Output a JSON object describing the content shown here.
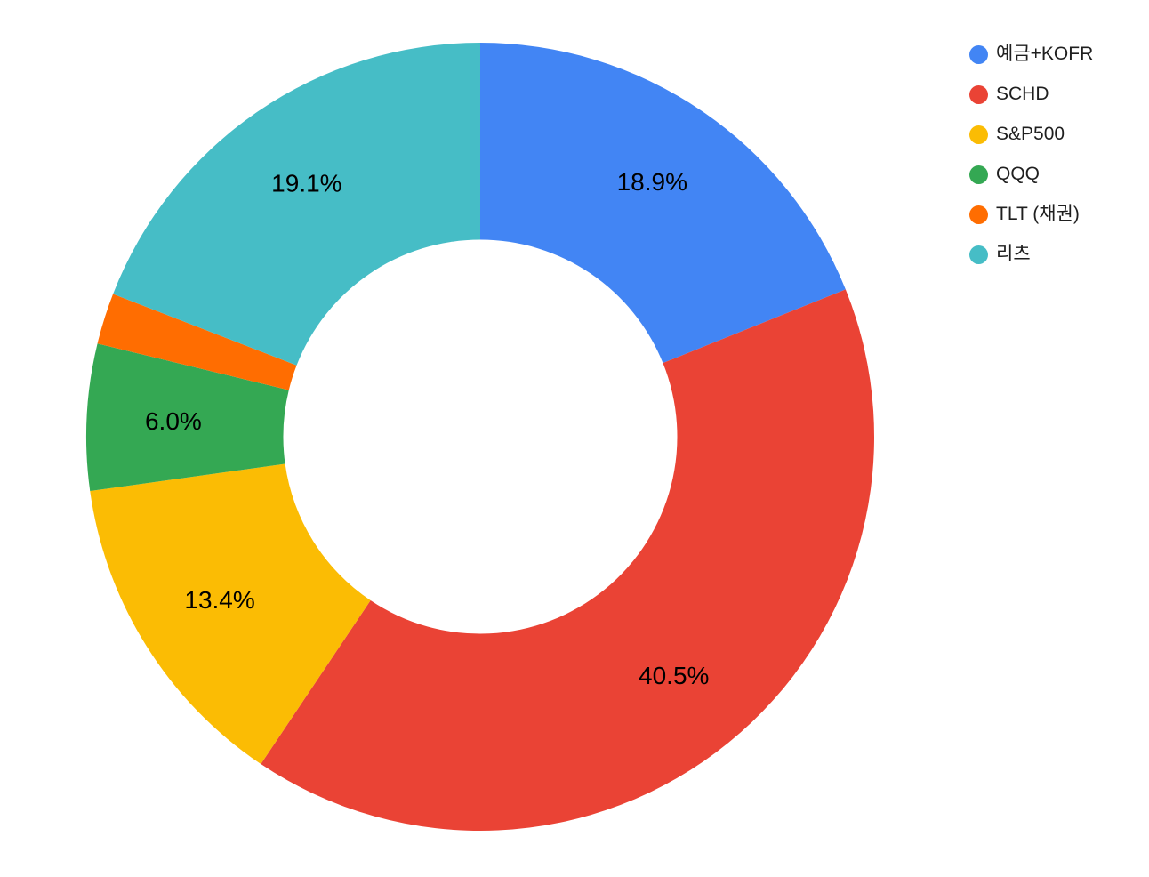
{
  "chart_data": {
    "type": "pie",
    "subtype": "donut",
    "labels": [
      "예금+KOFR",
      "SCHD",
      "S&P500",
      "QQQ",
      "TLT (채권)",
      "리츠"
    ],
    "values": [
      18.9,
      40.5,
      13.4,
      6.0,
      2.1,
      19.1
    ],
    "slice_labels": [
      "18.9%",
      "40.5%",
      "13.4%",
      "6.0%",
      null,
      "19.1%"
    ],
    "colors": [
      "#4285F4",
      "#EA4335",
      "#FBBC04",
      "#34A853",
      "#FF6D01",
      "#46BDC6"
    ],
    "label_color": "#000000",
    "legend_position": "right",
    "start_angle_deg": 0,
    "direction": "clockwise",
    "donut_hole_ratio": 0.5,
    "grid": false
  }
}
